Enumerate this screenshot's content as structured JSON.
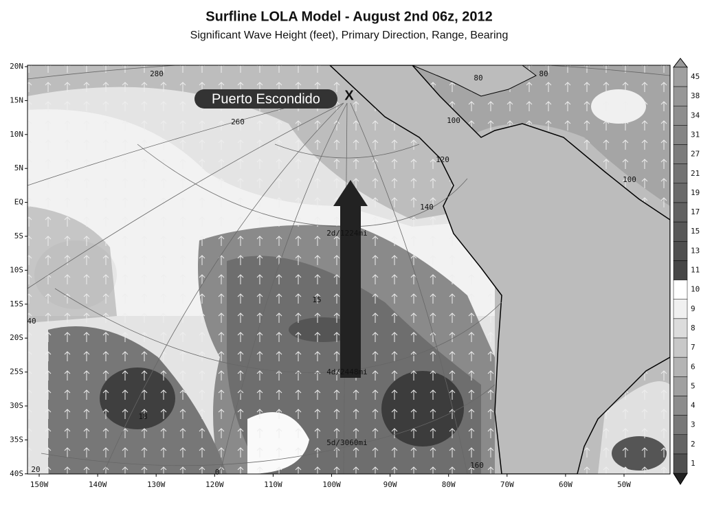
{
  "header": {
    "title": "Surfline LOLA Model - August 2nd 06z, 2012",
    "subtitle": "Significant Wave Height (feet), Primary Direction, Range, Bearing"
  },
  "map": {
    "lat_labels": [
      "20N",
      "15N",
      "10N",
      "5N",
      "EQ",
      "5S",
      "10S",
      "15S",
      "20S",
      "25S",
      "30S",
      "35S",
      "40S"
    ],
    "lon_labels": [
      "150W",
      "140W",
      "130W",
      "120W",
      "110W",
      "100W",
      "90W",
      "80W",
      "70W",
      "60W",
      "50W"
    ],
    "location": "Puerto Escondido",
    "marker": "X",
    "ranges": [
      "2d/1224mi",
      "4d/2448mi",
      "5d/3060mi"
    ],
    "contour_labels": [
      "280",
      "260",
      "80",
      "80",
      "100",
      "120",
      "140",
      "100",
      "15",
      "18",
      "40",
      "160",
      "20",
      "0"
    ]
  },
  "colorbar": {
    "labels": [
      45,
      38,
      34,
      31,
      27,
      21,
      19,
      17,
      15,
      13,
      11,
      10,
      9,
      8,
      7,
      6,
      5,
      4,
      3,
      2,
      1
    ]
  }
}
